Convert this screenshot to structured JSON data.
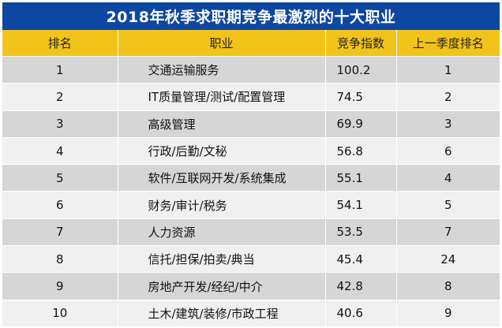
{
  "title": "2018年秋季求职期竞争最激烈的十大职业",
  "columns": [
    "排名",
    "职业",
    "竞争指数",
    "上一季度排名"
  ],
  "rows": [
    {
      "rank": "1",
      "job": "交通运输服务",
      "index": "100.2",
      "prev": "1"
    },
    {
      "rank": "2",
      "job": "IT质量管理/测试/配置管理",
      "index": "74.5",
      "prev": "2"
    },
    {
      "rank": "3",
      "job": "高级管理",
      "index": "69.9",
      "prev": "3"
    },
    {
      "rank": "4",
      "job": "行政/后勤/文秘",
      "index": "56.8",
      "prev": "6"
    },
    {
      "rank": "5",
      "job": "软件/互联网开发/系统集成",
      "index": "55.1",
      "prev": "4"
    },
    {
      "rank": "6",
      "job": "财务/审计/税务",
      "index": "54.1",
      "prev": "5"
    },
    {
      "rank": "7",
      "job": "人力资源",
      "index": "53.5",
      "prev": "7"
    },
    {
      "rank": "8",
      "job": "信托/担保/拍卖/典当",
      "index": "45.4",
      "prev": "24"
    },
    {
      "rank": "9",
      "job": "房地产开发/经纪/中介",
      "index": "42.8",
      "prev": "8"
    },
    {
      "rank": "10",
      "job": "土木/建筑/装修/市政工程",
      "index": "40.6",
      "prev": "9"
    }
  ],
  "colors": {
    "title_bg": "#0d47a1",
    "header_bg": "#f2c31a",
    "row_odd": "#d6d6d6",
    "row_even": "#f0f0f0"
  }
}
